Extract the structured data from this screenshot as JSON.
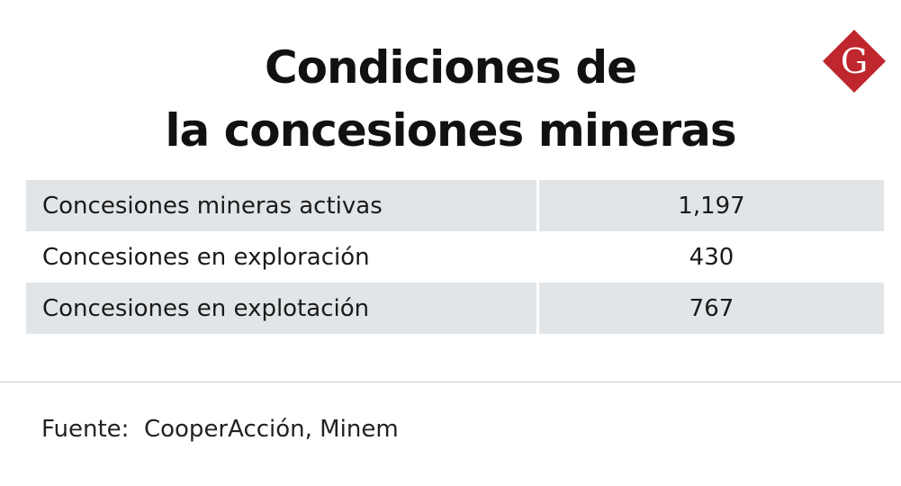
{
  "colors": {
    "shaded_row": "#e2e5e7",
    "logo_red": "#c0262d",
    "text": "#111111"
  },
  "logo": {
    "letter": "G",
    "icon": "gestion-logo"
  },
  "chart_data": {
    "type": "table",
    "title_lines": [
      "Condiciones de",
      "la concesiones mineras"
    ],
    "columns": [
      "",
      ""
    ],
    "rows": [
      {
        "label": "Concesiones mineras activas",
        "value": "1,197"
      },
      {
        "label": "Concesiones en exploración",
        "value": "430"
      },
      {
        "label": "Concesiones en explotación",
        "value": "767"
      }
    ],
    "source": "Fuente:  CooperAcción, Minem"
  }
}
